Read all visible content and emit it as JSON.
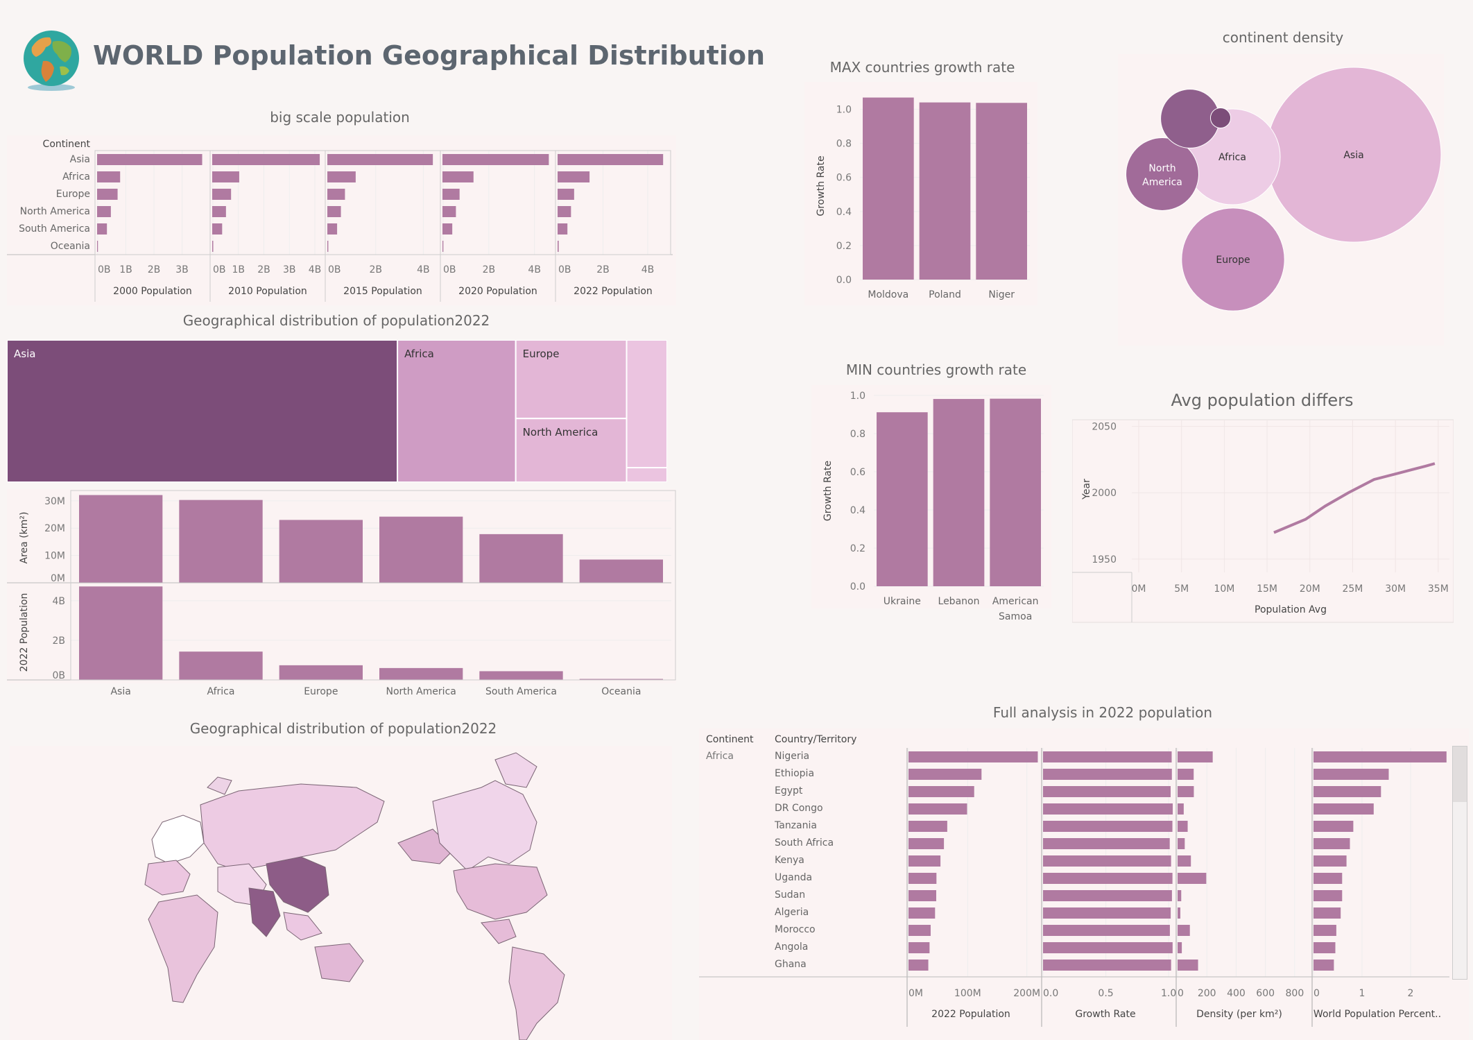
{
  "header": {
    "title": "WORLD Population Geographical Distribution"
  },
  "colors": {
    "bar": "#b07aa1",
    "dark": "#7c4d79",
    "mid": "#cf9cc4",
    "light": "#e3b6d6",
    "lighter": "#ebc4e0",
    "bg": "#f9f5f4",
    "panel": "#fbf3f3"
  },
  "chart_data": [
    {
      "id": "big_scale",
      "type": "bar",
      "title": "big scale population",
      "row_header": "Continent",
      "categories": [
        "Asia",
        "Africa",
        "Europe",
        "North America",
        "South America",
        "Oceania"
      ],
      "series": [
        {
          "name": "2000 Population",
          "values": [
            3.74,
            0.82,
            0.73,
            0.49,
            0.35,
            0.03
          ],
          "ticks": [
            "0B",
            "1B",
            "2B",
            "3B"
          ],
          "tick_values": [
            0,
            1,
            2,
            3
          ],
          "max": 3.9
        },
        {
          "name": "2010 Population",
          "values": [
            4.22,
            1.06,
            0.74,
            0.54,
            0.39,
            0.04
          ],
          "ticks": [
            "0B",
            "1B",
            "2B",
            "3B",
            "4B"
          ],
          "tick_values": [
            0,
            1,
            2,
            3,
            4
          ],
          "max": 4.3
        },
        {
          "name": "2015 Population",
          "values": [
            4.43,
            1.19,
            0.74,
            0.57,
            0.41,
            0.04
          ],
          "ticks": [
            "0B",
            "2B",
            "4B"
          ],
          "tick_values": [
            0,
            2,
            4
          ],
          "max": 4.6
        },
        {
          "name": "2020 Population",
          "values": [
            4.66,
            1.36,
            0.75,
            0.59,
            0.43,
            0.04
          ],
          "ticks": [
            "0B",
            "2B",
            "4B"
          ],
          "tick_values": [
            0,
            2,
            4
          ],
          "max": 4.8
        },
        {
          "name": "2022 Population",
          "values": [
            4.72,
            1.43,
            0.74,
            0.6,
            0.44,
            0.05
          ],
          "ticks": [
            "0B",
            "2B",
            "4B"
          ],
          "tick_values": [
            0,
            2,
            4
          ],
          "max": 4.9
        }
      ]
    },
    {
      "id": "treemap",
      "type": "treemap",
      "title": "Geographical distribution of population2022",
      "items": [
        {
          "label": "Asia",
          "value": 4.72
        },
        {
          "label": "Africa",
          "value": 1.43
        },
        {
          "label": "Europe",
          "value": 0.74
        },
        {
          "label": "North America",
          "value": 0.6
        },
        {
          "label": "",
          "value": 0.44
        },
        {
          "label": "",
          "value": 0.05
        }
      ]
    },
    {
      "id": "area_pop",
      "type": "bar",
      "categories": [
        "Asia",
        "Africa",
        "Europe",
        "North America",
        "South America",
        "Oceania"
      ],
      "series": [
        {
          "name": "Area (km²)",
          "values": [
            32.1,
            30.3,
            23.0,
            24.2,
            17.8,
            8.5
          ],
          "ticks": [
            "0M",
            "10M",
            "20M",
            "30M"
          ],
          "tick_values": [
            0,
            10,
            20,
            30
          ],
          "max": 33
        },
        {
          "name": "2022 Population",
          "values": [
            4.72,
            1.43,
            0.74,
            0.6,
            0.44,
            0.05
          ],
          "ticks": [
            "0B",
            "2B",
            "4B"
          ],
          "tick_values": [
            0,
            2,
            4
          ],
          "max": 4.8
        }
      ]
    },
    {
      "id": "max_growth",
      "type": "bar",
      "title": "MAX countries growth rate",
      "ylabel": "Growth Rate",
      "categories": [
        "Moldova",
        "Poland",
        "Niger"
      ],
      "values": [
        1.0691,
        1.0404,
        1.0378
      ],
      "ylim": [
        0,
        1.1
      ],
      "ticks": [
        "0.0",
        "0.2",
        "0.4",
        "0.6",
        "0.8",
        "1.0"
      ],
      "tick_values": [
        0,
        0.2,
        0.4,
        0.6,
        0.8,
        1.0
      ]
    },
    {
      "id": "min_growth",
      "type": "bar",
      "title": "MIN countries growth rate",
      "ylabel": "Growth Rate",
      "categories": [
        "Ukraine",
        "Lebanon",
        "American Samoa"
      ],
      "values": [
        0.912,
        0.9816,
        0.9831
      ],
      "ylim": [
        0,
        1.0
      ],
      "ticks": [
        "0.0",
        "0.2",
        "0.4",
        "0.6",
        "0.8",
        "1.0"
      ],
      "tick_values": [
        0,
        0.2,
        0.4,
        0.6,
        0.8,
        1.0
      ]
    },
    {
      "id": "density",
      "type": "bubble",
      "title": "continent density",
      "items": [
        {
          "label": "Asia",
          "value": 150
        },
        {
          "label": "Europe",
          "value": 52
        },
        {
          "label": "Africa",
          "value": 45
        },
        {
          "label": "North America",
          "value": 26
        },
        {
          "label": "",
          "value": 17
        },
        {
          "label": "",
          "value": 2
        }
      ]
    },
    {
      "id": "avg_pop",
      "type": "line",
      "title": "Avg population differs",
      "xlabel": "Population Avg",
      "ylabel": "Year",
      "x": [
        15.8,
        19.5,
        21.8,
        24.5,
        27.5,
        30.5,
        33.5,
        34.6
      ],
      "y": [
        1970,
        1980,
        1990,
        2000,
        2010,
        2015,
        2020,
        2022
      ],
      "xlim": [
        0,
        35.5
      ],
      "ylim": [
        1940,
        2055
      ],
      "xticks": [
        "0M",
        "5M",
        "10M",
        "15M",
        "20M",
        "25M",
        "30M",
        "35M"
      ],
      "xtick_values": [
        0,
        5,
        10,
        15,
        20,
        25,
        30,
        35
      ],
      "yticks": [
        "1950",
        "2000",
        "2050"
      ],
      "ytick_values": [
        1950,
        2000,
        2050
      ]
    },
    {
      "id": "full",
      "type": "table",
      "title": "Full analysis in 2022 population",
      "columns": [
        "Continent",
        "Country/Territory"
      ],
      "continent": "Africa",
      "rows": [
        {
          "country": "Nigeria",
          "pop": 218.5,
          "growth": 1.0241,
          "density": 240,
          "wpp": 2.74
        },
        {
          "country": "Ethiopia",
          "pop": 123.4,
          "growth": 1.0257,
          "density": 110,
          "wpp": 1.55
        },
        {
          "country": "Egypt",
          "pop": 110.99,
          "growth": 1.0158,
          "density": 111,
          "wpp": 1.39
        },
        {
          "country": "DR Congo",
          "pop": 99.01,
          "growth": 1.0325,
          "density": 42,
          "wpp": 1.24
        },
        {
          "country": "Tanzania",
          "pop": 65.5,
          "growth": 1.03,
          "density": 69,
          "wpp": 0.82
        },
        {
          "country": "South Africa",
          "pop": 59.89,
          "growth": 1.0087,
          "density": 49,
          "wpp": 0.75
        },
        {
          "country": "Kenya",
          "pop": 54.03,
          "growth": 1.0193,
          "density": 91,
          "wpp": 0.68
        },
        {
          "country": "Uganda",
          "pop": 47.25,
          "growth": 1.0304,
          "density": 196,
          "wpp": 0.59
        },
        {
          "country": "Sudan",
          "pop": 46.87,
          "growth": 1.0263,
          "density": 25,
          "wpp": 0.59
        },
        {
          "country": "Algeria",
          "pop": 44.9,
          "growth": 1.0164,
          "density": 19,
          "wpp": 0.56
        },
        {
          "country": "Morocco",
          "pop": 37.46,
          "growth": 1.0098,
          "density": 84,
          "wpp": 0.47
        },
        {
          "country": "Angola",
          "pop": 35.59,
          "growth": 1.0315,
          "density": 29,
          "wpp": 0.45
        },
        {
          "country": "Ghana",
          "pop": 33.48,
          "growth": 1.0196,
          "density": 140,
          "wpp": 0.42
        }
      ],
      "measures": [
        {
          "name": "2022 Population",
          "ticks": [
            "0M",
            "100M",
            "200M"
          ],
          "tick_values": [
            0,
            100,
            200
          ],
          "max": 225
        },
        {
          "name": "Growth Rate",
          "ticks": [
            "0.0",
            "0.5",
            "1.0"
          ],
          "tick_values": [
            0,
            0.5,
            1.0
          ],
          "max": 1.06
        },
        {
          "name": "Density (per km²)",
          "ticks": [
            "0",
            "200",
            "400",
            "600",
            "800"
          ],
          "tick_values": [
            0,
            200,
            400,
            600,
            800
          ],
          "max": 900
        },
        {
          "name": "World Population Percent..",
          "ticks": [
            "0",
            "1",
            "2"
          ],
          "tick_values": [
            0,
            1,
            2
          ],
          "max": 2.8
        }
      ]
    },
    {
      "id": "map",
      "type": "map",
      "title": "Geographical distribution of population2022"
    }
  ]
}
